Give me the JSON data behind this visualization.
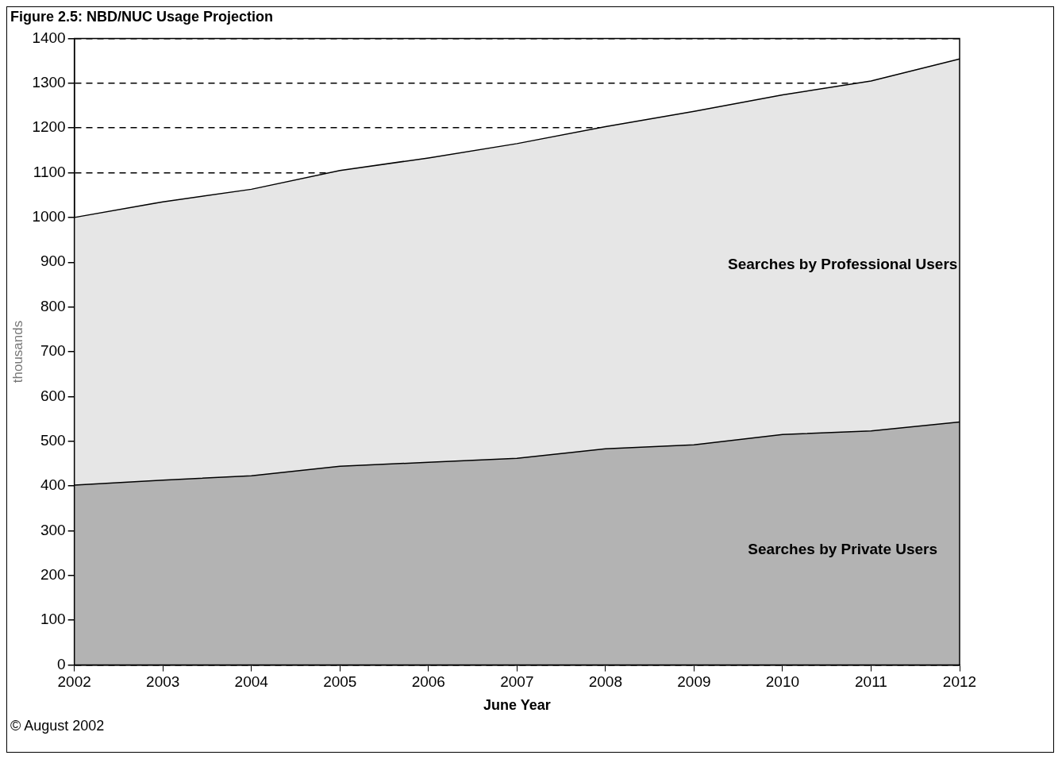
{
  "chart_data": {
    "type": "area",
    "title": "Figure 2.5: NBD/NUC Usage Projection",
    "xlabel": "June Year",
    "ylabel": "thousands",
    "categories": [
      "2002",
      "2003",
      "2004",
      "2005",
      "2006",
      "2007",
      "2008",
      "2009",
      "2010",
      "2011",
      "2012"
    ],
    "stacked": true,
    "series": [
      {
        "name": "Searches by Private Users",
        "color": "#b3b3b3",
        "values": [
          402,
          413,
          423,
          444,
          453,
          462,
          483,
          492,
          515,
          523,
          543
        ]
      },
      {
        "name": "Searches by Professional Users",
        "color": "#e6e6e6",
        "values": [
          598,
          622,
          640,
          661,
          680,
          703,
          720,
          745,
          759,
          782,
          811
        ]
      }
    ],
    "ylim": [
      0,
      1400
    ],
    "yticks": [
      0,
      100,
      200,
      300,
      400,
      500,
      600,
      700,
      800,
      900,
      1000,
      1100,
      1200,
      1300,
      1400
    ],
    "grid": "y",
    "legend": false,
    "marker": "none",
    "line_style": "solid",
    "annotations": [
      "© August 2002"
    ]
  }
}
